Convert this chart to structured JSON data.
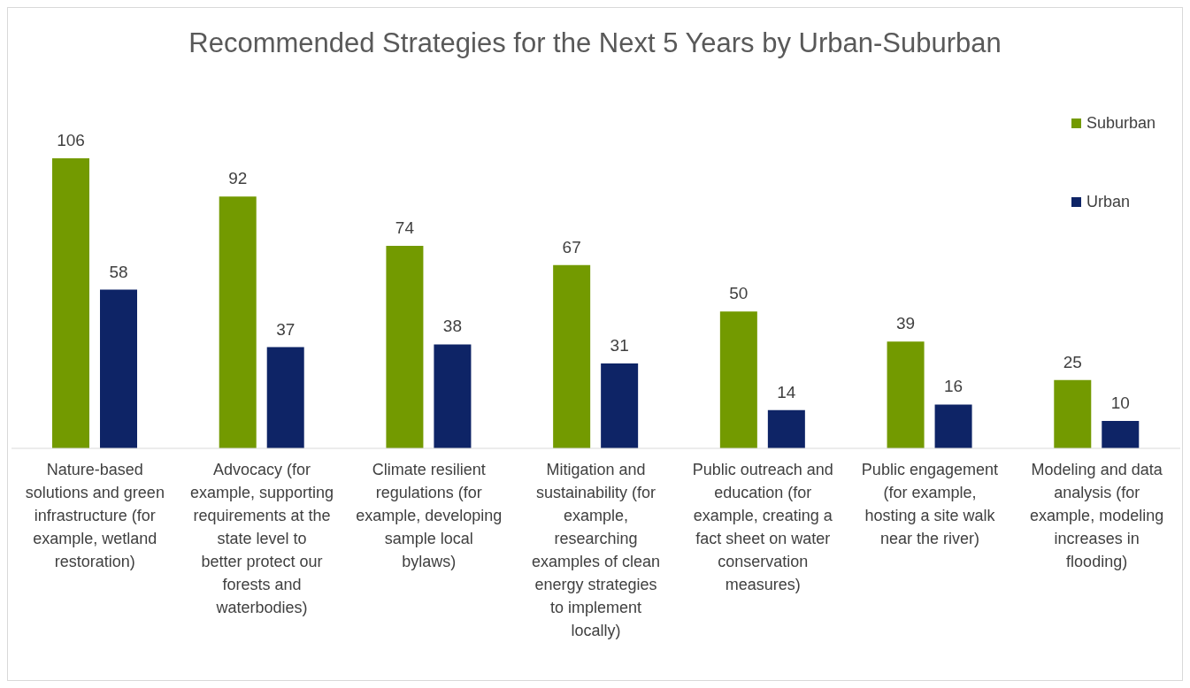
{
  "chart_data": {
    "type": "bar",
    "title": "Recommended Strategies for the Next 5 Years by Urban-Suburban",
    "categories": [
      "Nature-based solutions and green infrastructure (for example, wetland restoration)",
      "Advocacy (for example, supporting requirements at the state level to better protect our forests and waterbodies)",
      "Climate resilient regulations (for example, developing sample local bylaws)",
      "Mitigation and sustainability (for example, researching examples of clean energy strategies to implement locally)",
      "Public outreach and education (for example, creating a fact sheet on water conservation measures)",
      "Public engagement (for example, hosting a site walk near the river)",
      "Modeling and data analysis (for example, modeling increases in flooding)"
    ],
    "series": [
      {
        "name": "Suburban",
        "color": "#739a00",
        "values": [
          106,
          92,
          74,
          67,
          50,
          39,
          25
        ]
      },
      {
        "name": "Urban",
        "color": "#0e2466",
        "values": [
          58,
          37,
          38,
          31,
          14,
          16,
          10
        ]
      }
    ],
    "data_labels": true,
    "legend": "top right"
  }
}
